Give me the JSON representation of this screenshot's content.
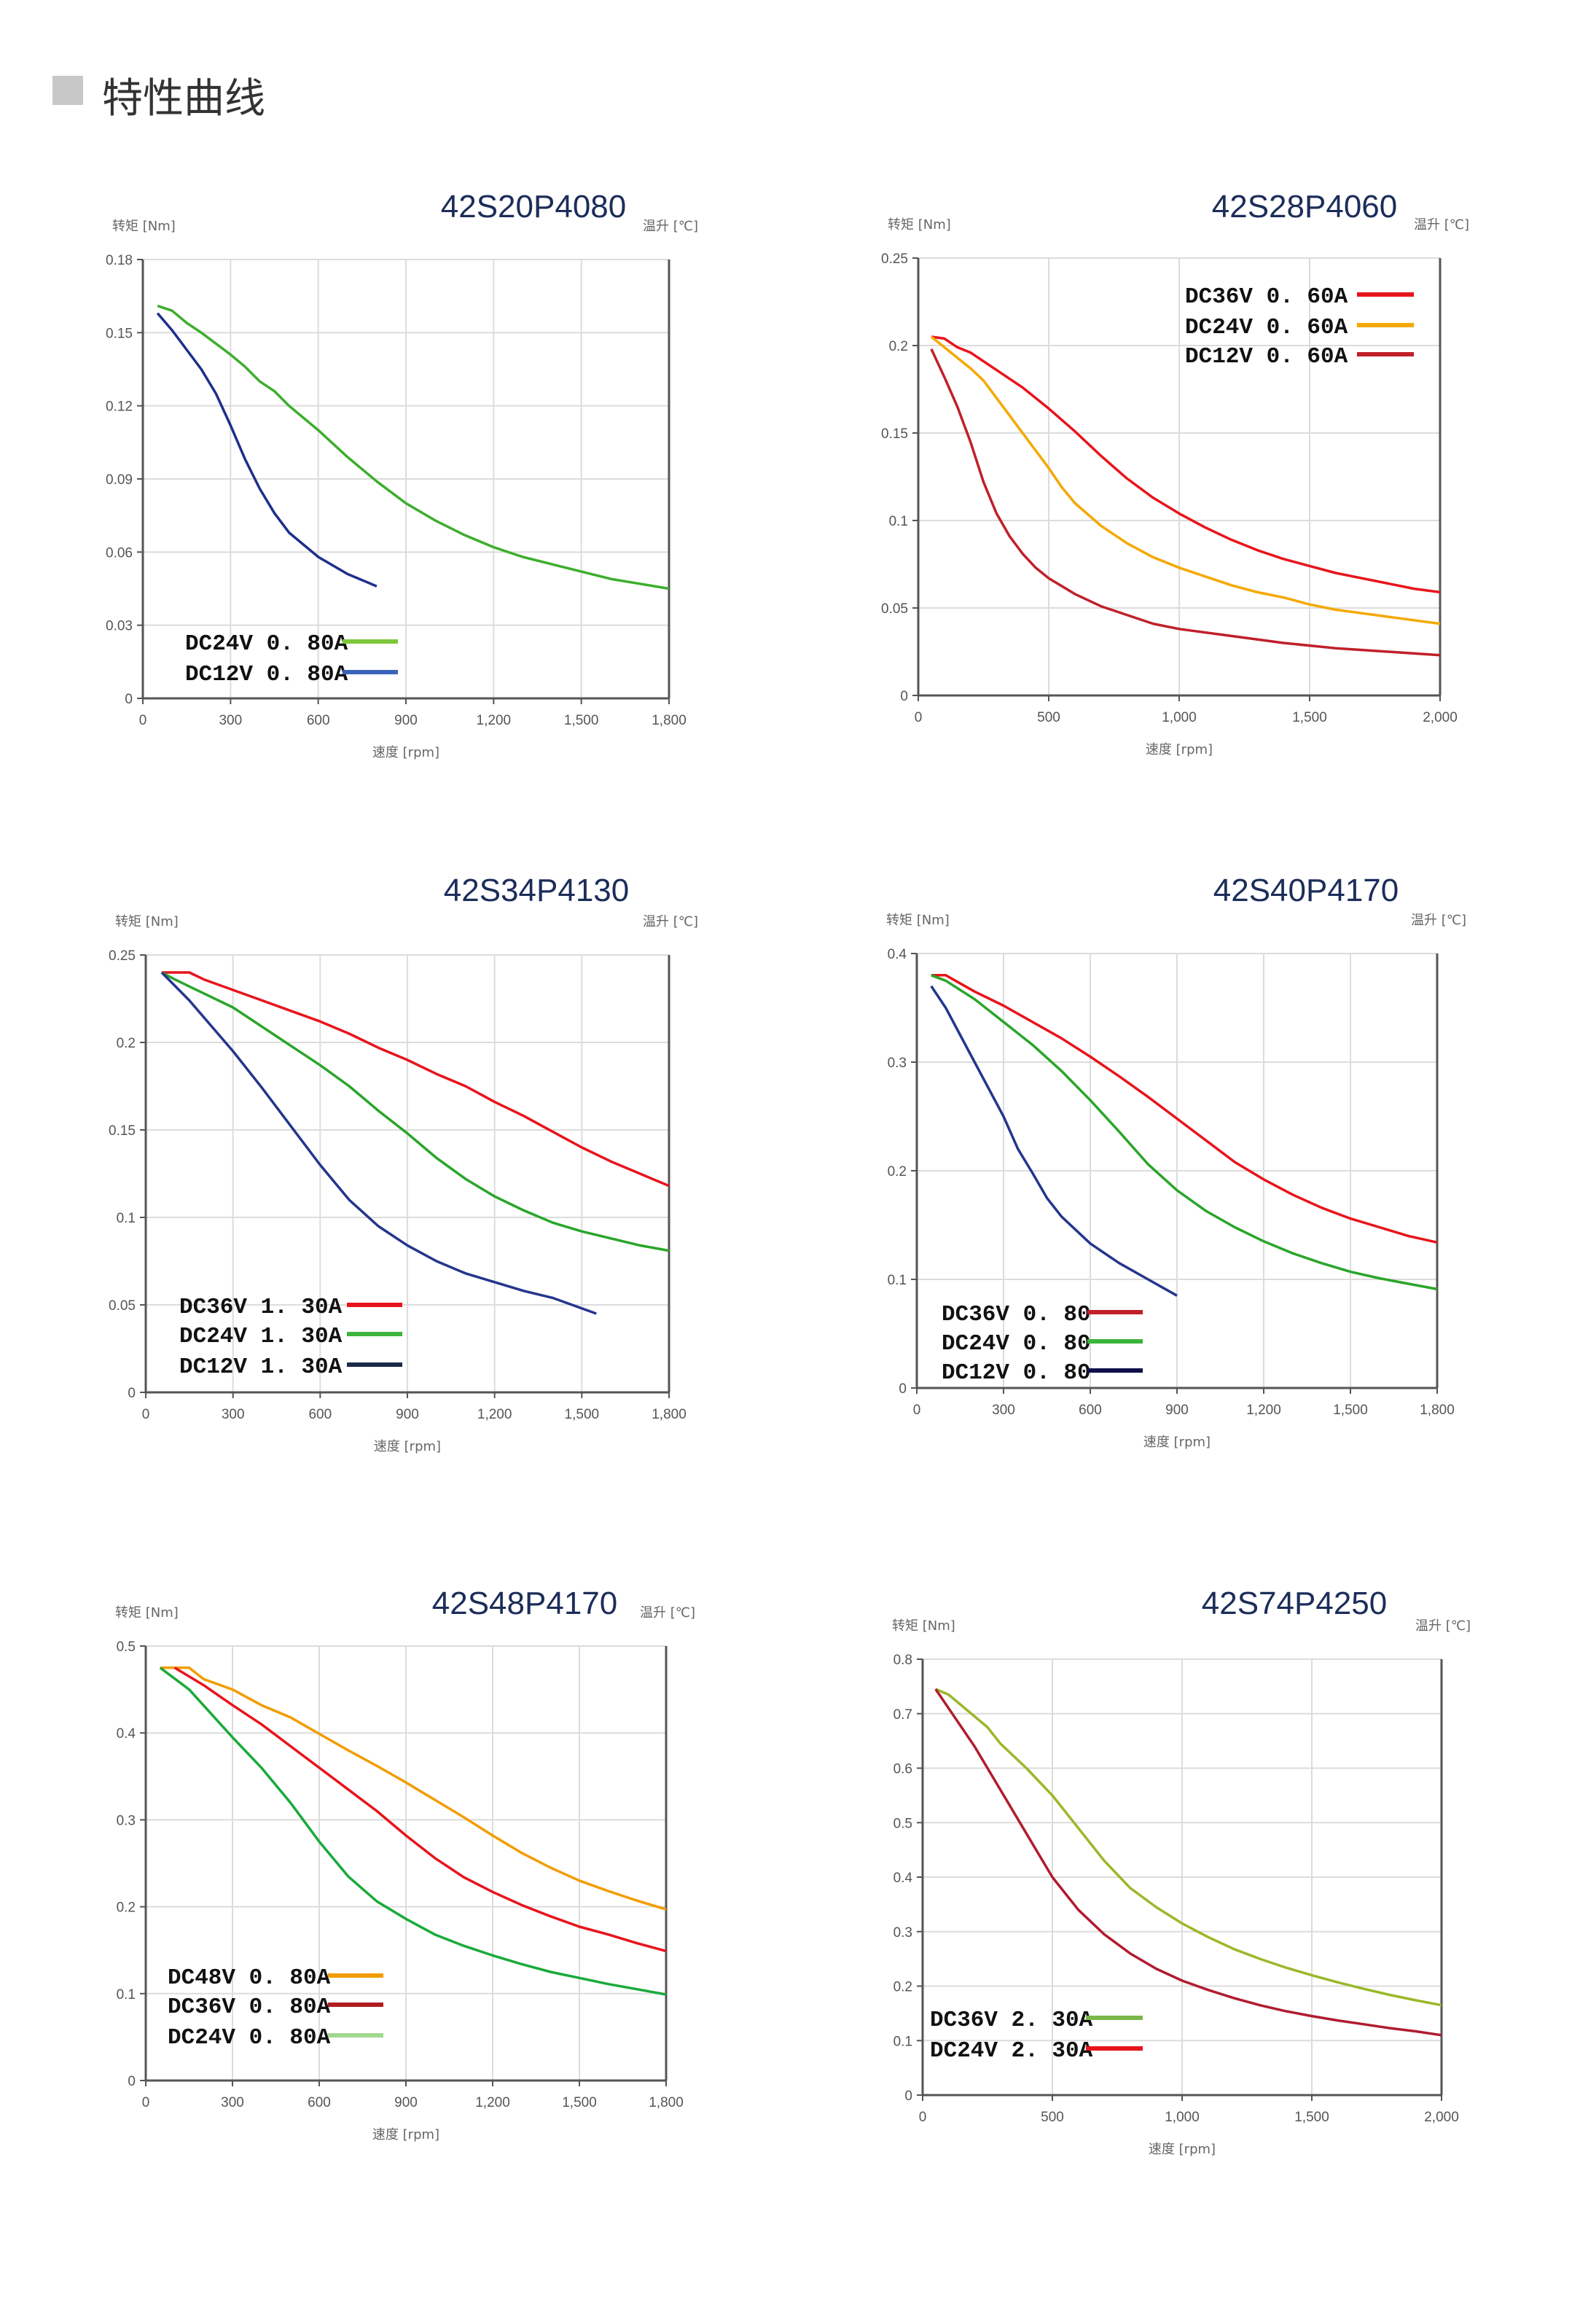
{
  "header": {
    "title": "特性曲线",
    "icon": "gray-square-icon"
  },
  "chart_data": [
    {
      "type": "line",
      "title": "42S20P4080",
      "ylabel": "转矩 [Nm]",
      "y2label": "温升 [℃]",
      "xlabel": "速度 [rpm]",
      "xlim": [
        0,
        1800
      ],
      "ylim": [
        0,
        0.18
      ],
      "xticks": [
        0,
        300,
        600,
        900,
        1200,
        1500,
        1800
      ],
      "xtick_labels": [
        "0",
        "300",
        "600",
        "900",
        "1,200",
        "1,500",
        "1,800"
      ],
      "yticks": [
        0,
        0.03,
        0.06,
        0.09,
        0.12,
        0.15,
        0.18
      ],
      "ytick_labels": [
        "0",
        "0.03",
        "0.06",
        "0.09",
        "0.12",
        "0.15",
        "0.18"
      ],
      "grid": true,
      "legend_position": "bottom-left",
      "series": [
        {
          "name": "DC24V 0. 80A",
          "color": "#3cae2c",
          "legend_color": "#7ec63a",
          "x": [
            50,
            100,
            150,
            200,
            300,
            350,
            400,
            450,
            500,
            600,
            700,
            800,
            900,
            1000,
            1100,
            1200,
            1300,
            1400,
            1500,
            1600,
            1700,
            1800
          ],
          "y": [
            0.161,
            0.159,
            0.154,
            0.15,
            0.141,
            0.136,
            0.13,
            0.126,
            0.12,
            0.11,
            0.099,
            0.089,
            0.08,
            0.073,
            0.067,
            0.062,
            0.058,
            0.055,
            0.052,
            0.049,
            0.047,
            0.045
          ]
        },
        {
          "name": "DC12V 0. 80A",
          "color": "#1e2f8a",
          "legend_color": "#3a62b8",
          "x": [
            50,
            100,
            200,
            250,
            300,
            350,
            400,
            450,
            500,
            600,
            700,
            800
          ],
          "y": [
            0.158,
            0.151,
            0.135,
            0.125,
            0.112,
            0.098,
            0.086,
            0.076,
            0.068,
            0.058,
            0.051,
            0.046
          ]
        }
      ]
    },
    {
      "type": "line",
      "title": "42S28P4060",
      "ylabel": "转矩 [Nm]",
      "y2label": "温升 [℃]",
      "xlabel": "速度 [rpm]",
      "xlim": [
        0,
        2000
      ],
      "ylim": [
        0,
        0.25
      ],
      "xticks": [
        0,
        500,
        1000,
        1500,
        2000
      ],
      "xtick_labels": [
        "0",
        "500",
        "1,000",
        "1,500",
        "2,000"
      ],
      "yticks": [
        0,
        0.05,
        0.1,
        0.15,
        0.2,
        0.25
      ],
      "ytick_labels": [
        "0",
        "0.05",
        "0.1",
        "0.15",
        "0.2",
        "0.25"
      ],
      "grid": true,
      "legend_position": "top-right",
      "series": [
        {
          "name": "DC36V 0. 60A",
          "color": "#e8141c",
          "legend_color": "#e8141c",
          "x": [
            50,
            100,
            150,
            200,
            300,
            400,
            500,
            600,
            700,
            800,
            900,
            1000,
            1100,
            1200,
            1300,
            1400,
            1500,
            1600,
            1700,
            1800,
            1900,
            2000
          ],
          "y": [
            0.205,
            0.204,
            0.199,
            0.196,
            0.186,
            0.176,
            0.164,
            0.151,
            0.137,
            0.124,
            0.113,
            0.104,
            0.096,
            0.089,
            0.083,
            0.078,
            0.074,
            0.07,
            0.067,
            0.064,
            0.061,
            0.059
          ]
        },
        {
          "name": "DC24V 0. 60A",
          "color": "#f5a800",
          "legend_color": "#f5a800",
          "x": [
            50,
            100,
            200,
            250,
            300,
            400,
            500,
            550,
            600,
            700,
            800,
            900,
            1000,
            1100,
            1200,
            1300,
            1400,
            1500,
            1600,
            1700,
            1800,
            1900,
            2000
          ],
          "y": [
            0.205,
            0.199,
            0.187,
            0.18,
            0.17,
            0.15,
            0.13,
            0.119,
            0.11,
            0.097,
            0.087,
            0.079,
            0.073,
            0.068,
            0.063,
            0.059,
            0.056,
            0.052,
            0.049,
            0.047,
            0.045,
            0.043,
            0.041
          ]
        },
        {
          "name": "DC12V 0. 60A",
          "color": "#c0202a",
          "legend_color": "#c0202a",
          "x": [
            50,
            100,
            150,
            200,
            250,
            300,
            350,
            400,
            450,
            500,
            600,
            700,
            800,
            900,
            1000,
            1200,
            1400,
            1600,
            1800,
            2000
          ],
          "y": [
            0.198,
            0.182,
            0.165,
            0.145,
            0.122,
            0.104,
            0.091,
            0.081,
            0.073,
            0.067,
            0.058,
            0.051,
            0.046,
            0.041,
            0.038,
            0.034,
            0.03,
            0.027,
            0.025,
            0.023
          ]
        }
      ]
    },
    {
      "type": "line",
      "title": "42S34P4130",
      "ylabel": "转矩 [Nm]",
      "y2label": "温升 [℃]",
      "xlabel": "速度 [rpm]",
      "xlim": [
        0,
        1800
      ],
      "ylim": [
        0,
        0.25
      ],
      "xticks": [
        0,
        300,
        600,
        900,
        1200,
        1500,
        1800
      ],
      "xtick_labels": [
        "0",
        "300",
        "600",
        "900",
        "1,200",
        "1,500",
        "1,800"
      ],
      "yticks": [
        0,
        0.05,
        0.1,
        0.15,
        0.2,
        0.25
      ],
      "ytick_labels": [
        "0",
        "0.05",
        "0.1",
        "0.15",
        "0.2",
        "0.25"
      ],
      "grid": true,
      "legend_position": "bottom-left",
      "series": [
        {
          "name": "DC36V 1. 30A",
          "color": "#e8141c",
          "legend_color": "#e8141c",
          "x": [
            55,
            150,
            200,
            300,
            400,
            500,
            600,
            700,
            800,
            900,
            1000,
            1100,
            1200,
            1300,
            1400,
            1500,
            1600,
            1700,
            1800
          ],
          "y": [
            0.24,
            0.24,
            0.236,
            0.23,
            0.224,
            0.218,
            0.212,
            0.205,
            0.197,
            0.19,
            0.182,
            0.175,
            0.166,
            0.158,
            0.149,
            0.14,
            0.132,
            0.125,
            0.118
          ]
        },
        {
          "name": "DC24V 1. 30A",
          "color": "#2aa52a",
          "legend_color": "#3cb43c",
          "x": [
            55,
            100,
            200,
            300,
            400,
            500,
            600,
            700,
            800,
            900,
            1000,
            1100,
            1200,
            1300,
            1400,
            1500,
            1600,
            1700,
            1800
          ],
          "y": [
            0.24,
            0.236,
            0.228,
            0.22,
            0.209,
            0.198,
            0.187,
            0.175,
            0.161,
            0.148,
            0.134,
            0.122,
            0.112,
            0.104,
            0.097,
            0.092,
            0.088,
            0.084,
            0.081
          ]
        },
        {
          "name": "DC12V 1. 30A",
          "color": "#24368c",
          "legend_color": "#1c2a4a",
          "x": [
            55,
            150,
            300,
            400,
            500,
            600,
            700,
            800,
            900,
            1000,
            1100,
            1200,
            1300,
            1400,
            1550
          ],
          "y": [
            0.24,
            0.224,
            0.195,
            0.174,
            0.152,
            0.13,
            0.11,
            0.095,
            0.084,
            0.075,
            0.068,
            0.063,
            0.058,
            0.054,
            0.045
          ]
        }
      ]
    },
    {
      "type": "line",
      "title": "42S40P4170",
      "ylabel": "转矩 [Nm]",
      "y2label": "温升 [℃]",
      "xlabel": "速度 [rpm]",
      "xlim": [
        0,
        1800
      ],
      "ylim": [
        0,
        0.4
      ],
      "xticks": [
        0,
        300,
        600,
        900,
        1200,
        1500,
        1800
      ],
      "xtick_labels": [
        "0",
        "300",
        "600",
        "900",
        "1,200",
        "1,500",
        "1,800"
      ],
      "yticks": [
        0,
        0.1,
        0.2,
        0.3,
        0.4
      ],
      "ytick_labels": [
        "0",
        "0.1",
        "0.2",
        "0.3",
        "0.4"
      ],
      "grid": true,
      "legend_position": "bottom-left",
      "series": [
        {
          "name": "DC36V 0. 80",
          "color": "#e8141c",
          "legend_color": "#c0202a",
          "x": [
            50,
            100,
            200,
            300,
            400,
            500,
            600,
            700,
            800,
            900,
            1000,
            1100,
            1200,
            1300,
            1400,
            1500,
            1600,
            1700,
            1800
          ],
          "y": [
            0.38,
            0.38,
            0.365,
            0.352,
            0.337,
            0.322,
            0.305,
            0.287,
            0.268,
            0.248,
            0.228,
            0.208,
            0.192,
            0.178,
            0.166,
            0.156,
            0.148,
            0.14,
            0.134
          ]
        },
        {
          "name": "DC24V 0. 80",
          "color": "#2aa52a",
          "legend_color": "#3cb43c",
          "x": [
            50,
            100,
            200,
            300,
            400,
            500,
            600,
            700,
            800,
            900,
            1000,
            1100,
            1200,
            1300,
            1400,
            1500,
            1600,
            1700,
            1800
          ],
          "y": [
            0.38,
            0.375,
            0.358,
            0.337,
            0.316,
            0.292,
            0.265,
            0.236,
            0.206,
            0.182,
            0.163,
            0.148,
            0.135,
            0.124,
            0.115,
            0.107,
            0.101,
            0.096,
            0.091
          ]
        },
        {
          "name": "DC12V 0. 80",
          "color": "#24368c",
          "legend_color": "#10104a",
          "x": [
            50,
            100,
            200,
            300,
            350,
            400,
            450,
            500,
            600,
            700,
            800,
            900
          ],
          "y": [
            0.37,
            0.35,
            0.3,
            0.25,
            0.22,
            0.198,
            0.175,
            0.158,
            0.133,
            0.115,
            0.1,
            0.085
          ]
        }
      ]
    },
    {
      "type": "line",
      "title": "42S48P4170",
      "ylabel": "转矩 [Nm]",
      "y2label": "温升 [℃]",
      "xlabel": "速度 [rpm]",
      "xlim": [
        0,
        1800
      ],
      "ylim": [
        0,
        0.5
      ],
      "xticks": [
        0,
        300,
        600,
        900,
        1200,
        1500,
        1800
      ],
      "xtick_labels": [
        "0",
        "300",
        "600",
        "900",
        "1,200",
        "1,500",
        "1,800"
      ],
      "yticks": [
        0,
        0.1,
        0.2,
        0.3,
        0.4,
        0.5
      ],
      "ytick_labels": [
        "0",
        "0.1",
        "0.2",
        "0.3",
        "0.4",
        "0.5"
      ],
      "grid": true,
      "legend_position": "bottom-left",
      "series": [
        {
          "name": "DC48V 0. 80A",
          "color": "#f29c00",
          "legend_color": "#f29c00",
          "x": [
            50,
            150,
            200,
            300,
            400,
            500,
            600,
            700,
            800,
            900,
            1000,
            1100,
            1200,
            1300,
            1400,
            1500,
            1600,
            1700,
            1800
          ],
          "y": [
            0.475,
            0.475,
            0.462,
            0.45,
            0.432,
            0.418,
            0.399,
            0.38,
            0.362,
            0.343,
            0.323,
            0.303,
            0.282,
            0.262,
            0.245,
            0.23,
            0.218,
            0.207,
            0.197
          ]
        },
        {
          "name": "DC36V 0. 80A",
          "color": "#e8141c",
          "legend_color": "#b01c20",
          "x": [
            100,
            200,
            300,
            400,
            500,
            600,
            700,
            800,
            900,
            1000,
            1100,
            1200,
            1300,
            1400,
            1500,
            1600,
            1700,
            1800
          ],
          "y": [
            0.475,
            0.455,
            0.432,
            0.41,
            0.385,
            0.36,
            0.335,
            0.31,
            0.282,
            0.256,
            0.234,
            0.217,
            0.202,
            0.189,
            0.177,
            0.168,
            0.158,
            0.149
          ]
        },
        {
          "name": "DC24V 0. 80A",
          "color": "#1aaa3a",
          "legend_color": "#a0d890",
          "x": [
            50,
            150,
            300,
            400,
            500,
            600,
            700,
            800,
            900,
            1000,
            1100,
            1200,
            1300,
            1400,
            1500,
            1600,
            1700,
            1800
          ],
          "y": [
            0.475,
            0.45,
            0.395,
            0.36,
            0.32,
            0.275,
            0.235,
            0.206,
            0.186,
            0.168,
            0.155,
            0.144,
            0.134,
            0.125,
            0.118,
            0.111,
            0.105,
            0.099
          ]
        }
      ]
    },
    {
      "type": "line",
      "title": "42S74P4250",
      "ylabel": "转矩 [Nm]",
      "y2label": "温升 [℃]",
      "xlabel": "速度 [rpm]",
      "xlim": [
        0,
        2000
      ],
      "ylim": [
        0,
        0.8
      ],
      "xticks": [
        0,
        500,
        1000,
        1500,
        2000
      ],
      "xtick_labels": [
        "0",
        "500",
        "1,000",
        "1,500",
        "2,000"
      ],
      "yticks": [
        0,
        0.1,
        0.2,
        0.3,
        0.4,
        0.5,
        0.6,
        0.7,
        0.8
      ],
      "ytick_labels": [
        "0",
        "0.1",
        "0.2",
        "0.3",
        "0.4",
        "0.5",
        "0.6",
        "0.7",
        "0.8"
      ],
      "grid": true,
      "legend_position": "bottom-left",
      "series": [
        {
          "name": "DC36V 2. 30A",
          "color": "#9ab82a",
          "legend_color": "#7ab84a",
          "x": [
            50,
            100,
            200,
            250,
            300,
            400,
            500,
            600,
            700,
            800,
            900,
            1000,
            1100,
            1200,
            1300,
            1400,
            1500,
            1600,
            1700,
            1800,
            1900,
            2000
          ],
          "y": [
            0.745,
            0.735,
            0.695,
            0.675,
            0.645,
            0.6,
            0.55,
            0.49,
            0.43,
            0.38,
            0.345,
            0.315,
            0.29,
            0.268,
            0.25,
            0.234,
            0.22,
            0.207,
            0.195,
            0.184,
            0.174,
            0.165
          ]
        },
        {
          "name": "DC24V 2. 30A",
          "color": "#b01c30",
          "legend_color": "#e8141c",
          "x": [
            50,
            100,
            200,
            300,
            400,
            500,
            600,
            700,
            800,
            900,
            1000,
            1100,
            1200,
            1300,
            1400,
            1500,
            1600,
            1700,
            1800,
            1900,
            2000
          ],
          "y": [
            0.745,
            0.71,
            0.64,
            0.56,
            0.48,
            0.4,
            0.34,
            0.295,
            0.26,
            0.232,
            0.21,
            0.193,
            0.178,
            0.165,
            0.154,
            0.145,
            0.137,
            0.13,
            0.123,
            0.117,
            0.11
          ]
        }
      ]
    }
  ]
}
